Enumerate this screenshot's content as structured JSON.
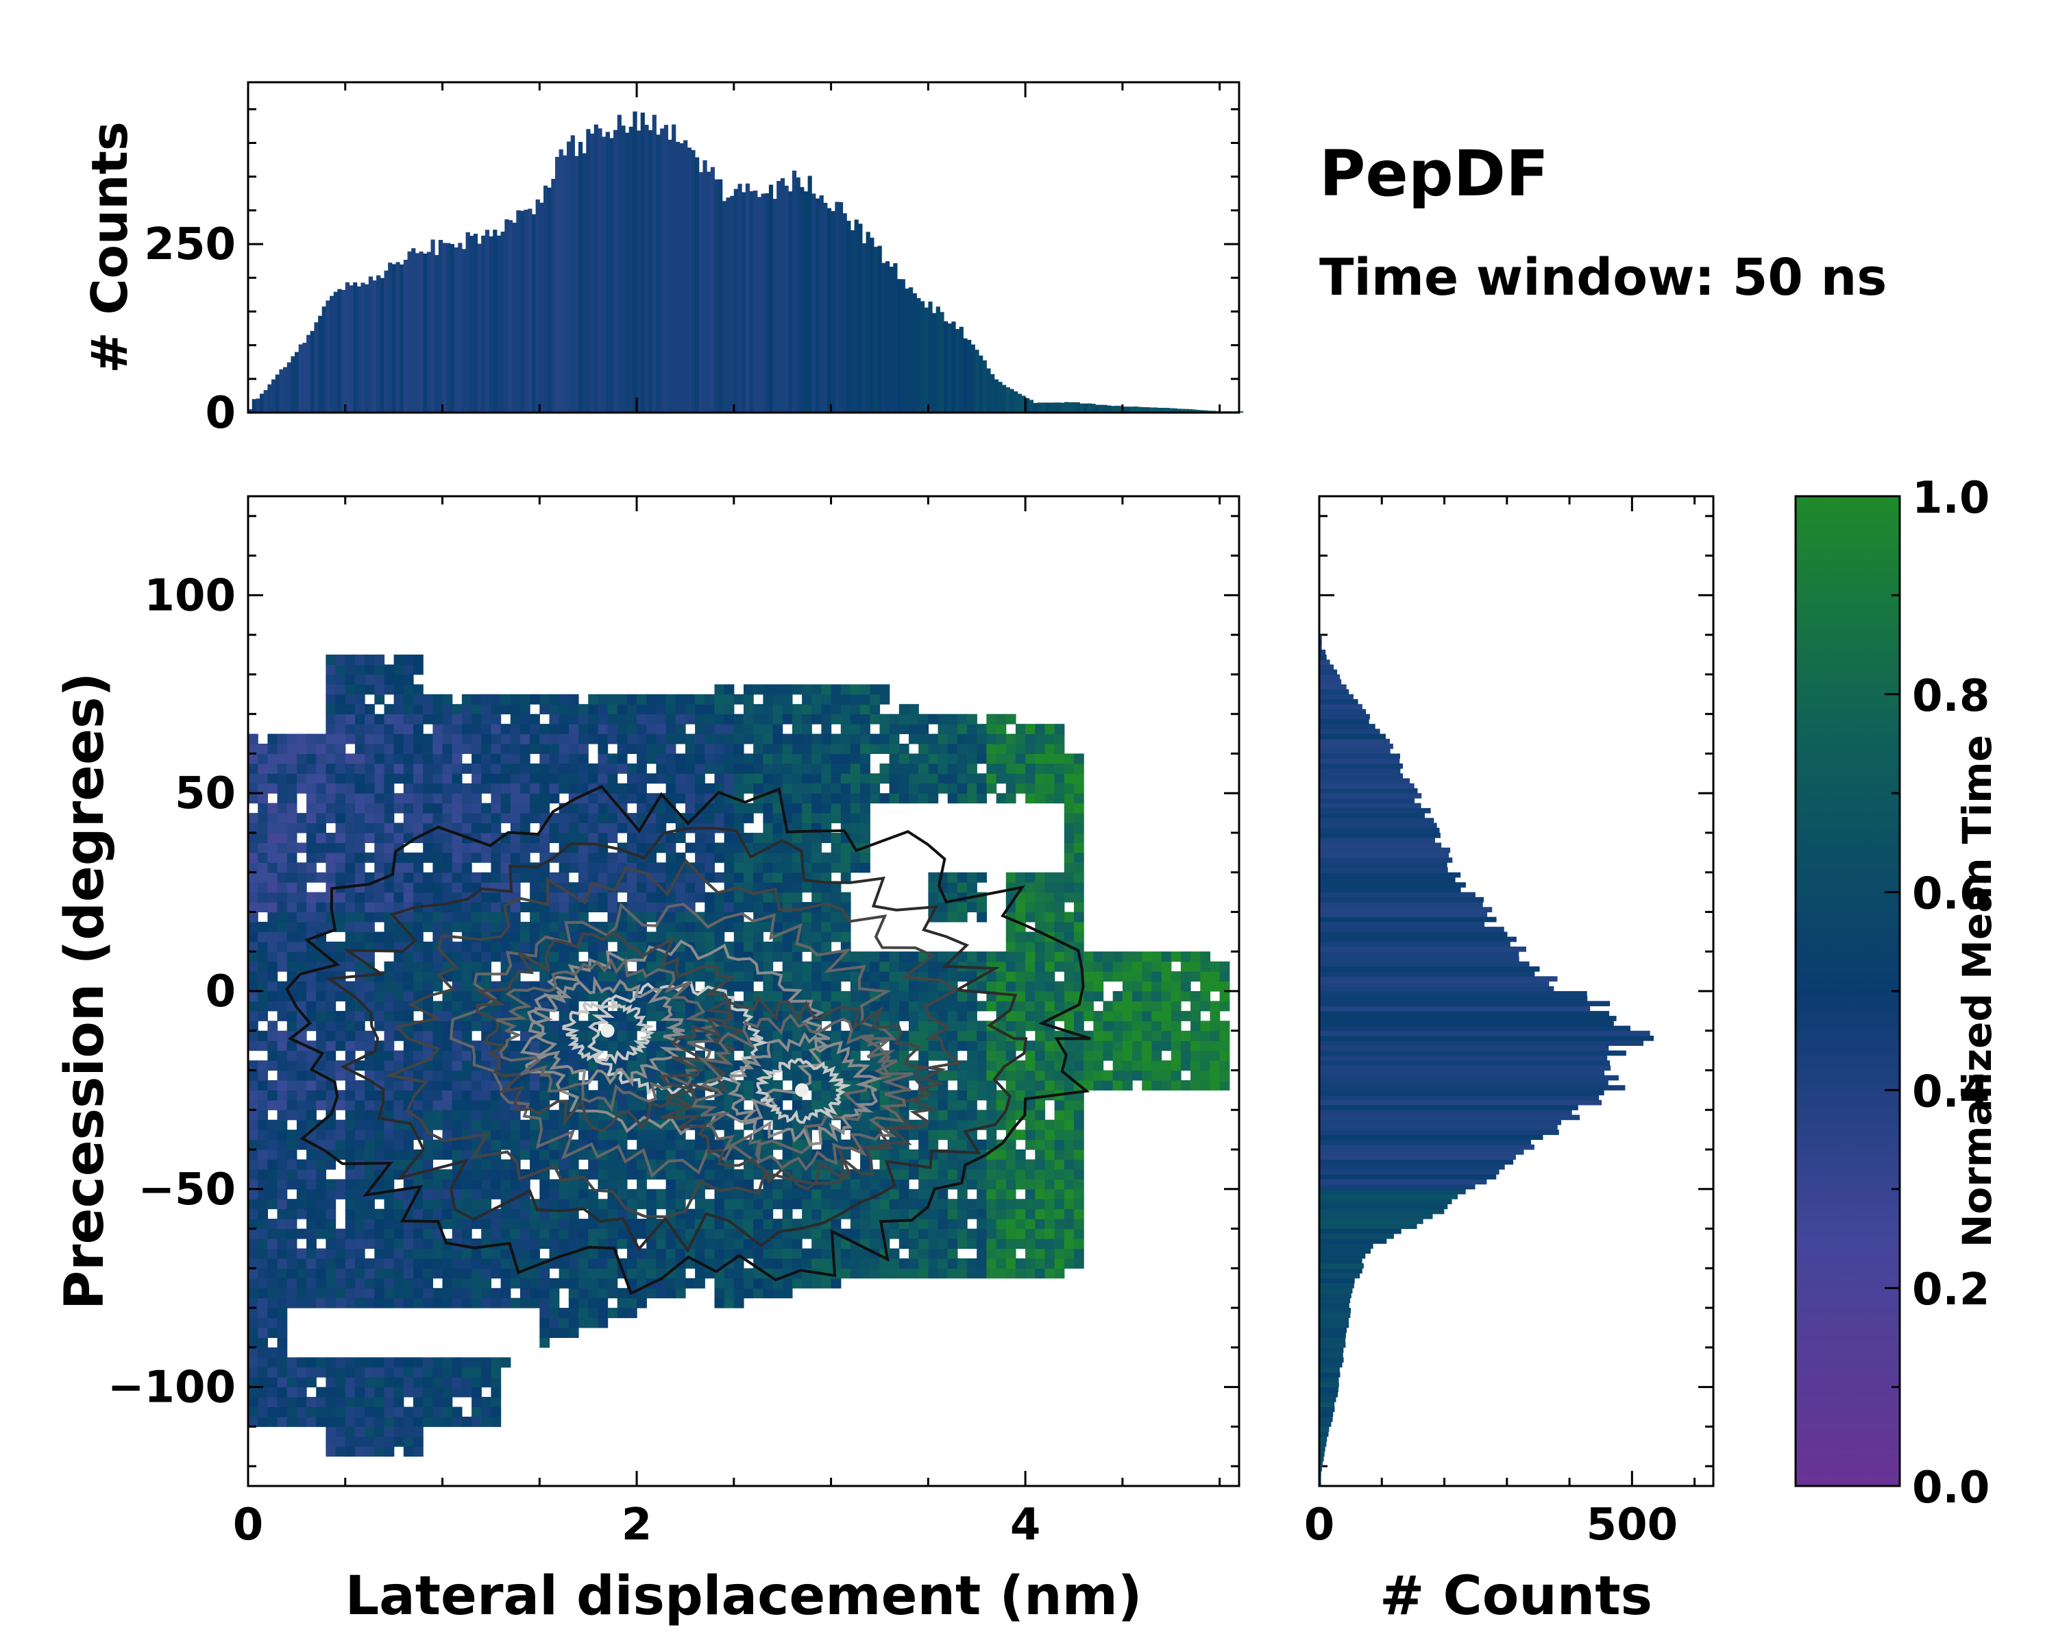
{
  "chart_data": {
    "type": "joint-histogram-heatmap",
    "title": "PepDF",
    "subtitle": "Time window: 50 ns",
    "main": {
      "type": "heatmap",
      "xlabel": "Lateral displacement (nm)",
      "ylabel": "Precession (degrees)",
      "xlim": [
        0,
        5.1
      ],
      "ylim": [
        -125,
        125
      ],
      "xticks": [
        0,
        2,
        4
      ],
      "xtick_labels": [
        "0",
        "2",
        "4"
      ],
      "yticks": [
        -100,
        -50,
        0,
        50,
        100
      ],
      "ytick_labels": [
        "−100",
        "−50",
        "0",
        "50",
        "100"
      ],
      "density_peaks": [
        {
          "x": 1.85,
          "y": -10,
          "label": "primary peak"
        },
        {
          "x": 2.85,
          "y": -25,
          "label": "secondary peak"
        }
      ],
      "contour_levels": 6
    },
    "top_histogram": {
      "type": "bar",
      "ylabel": "# Counts",
      "ylim": [
        0,
        490
      ],
      "yticks": [
        0,
        250
      ],
      "ytick_labels": [
        "0",
        "250"
      ],
      "x": [
        0.05,
        0.25,
        0.45,
        0.65,
        0.85,
        1.05,
        1.25,
        1.45,
        1.65,
        1.85,
        2.05,
        2.25,
        2.45,
        2.65,
        2.85,
        3.05,
        3.25,
        3.45,
        3.65,
        3.85,
        4.05,
        4.25,
        4.45,
        4.65,
        4.85,
        5.0
      ],
      "values": [
        20,
        90,
        180,
        200,
        240,
        250,
        265,
        300,
        390,
        420,
        430,
        400,
        330,
        320,
        350,
        300,
        240,
        170,
        130,
        50,
        15,
        15,
        10,
        8,
        5,
        2
      ]
    },
    "right_histogram": {
      "type": "barh",
      "xlabel": "# Counts",
      "xlim": [
        0,
        630
      ],
      "xticks": [
        0,
        500
      ],
      "xtick_labels": [
        "0",
        "500"
      ],
      "y": [
        85,
        75,
        65,
        55,
        45,
        35,
        25,
        15,
        5,
        -5,
        -10,
        -15,
        -25,
        -35,
        -45,
        -55,
        -65,
        -75,
        -85,
        -95,
        -105,
        -115,
        -122
      ],
      "values": [
        10,
        50,
        100,
        140,
        170,
        200,
        240,
        290,
        350,
        460,
        520,
        480,
        470,
        380,
        300,
        200,
        80,
        55,
        45,
        35,
        25,
        10,
        3
      ]
    },
    "colorbar": {
      "label": "Normalized Mean Time",
      "range": [
        0.0,
        1.0
      ],
      "ticks": [
        "0.0",
        "0.2",
        "0.4",
        "0.6",
        "0.8",
        "1.0"
      ],
      "colors": [
        "#693395",
        "#3a4b96",
        "#073d6e",
        "#0e5c63",
        "#1f8a2b"
      ]
    }
  }
}
